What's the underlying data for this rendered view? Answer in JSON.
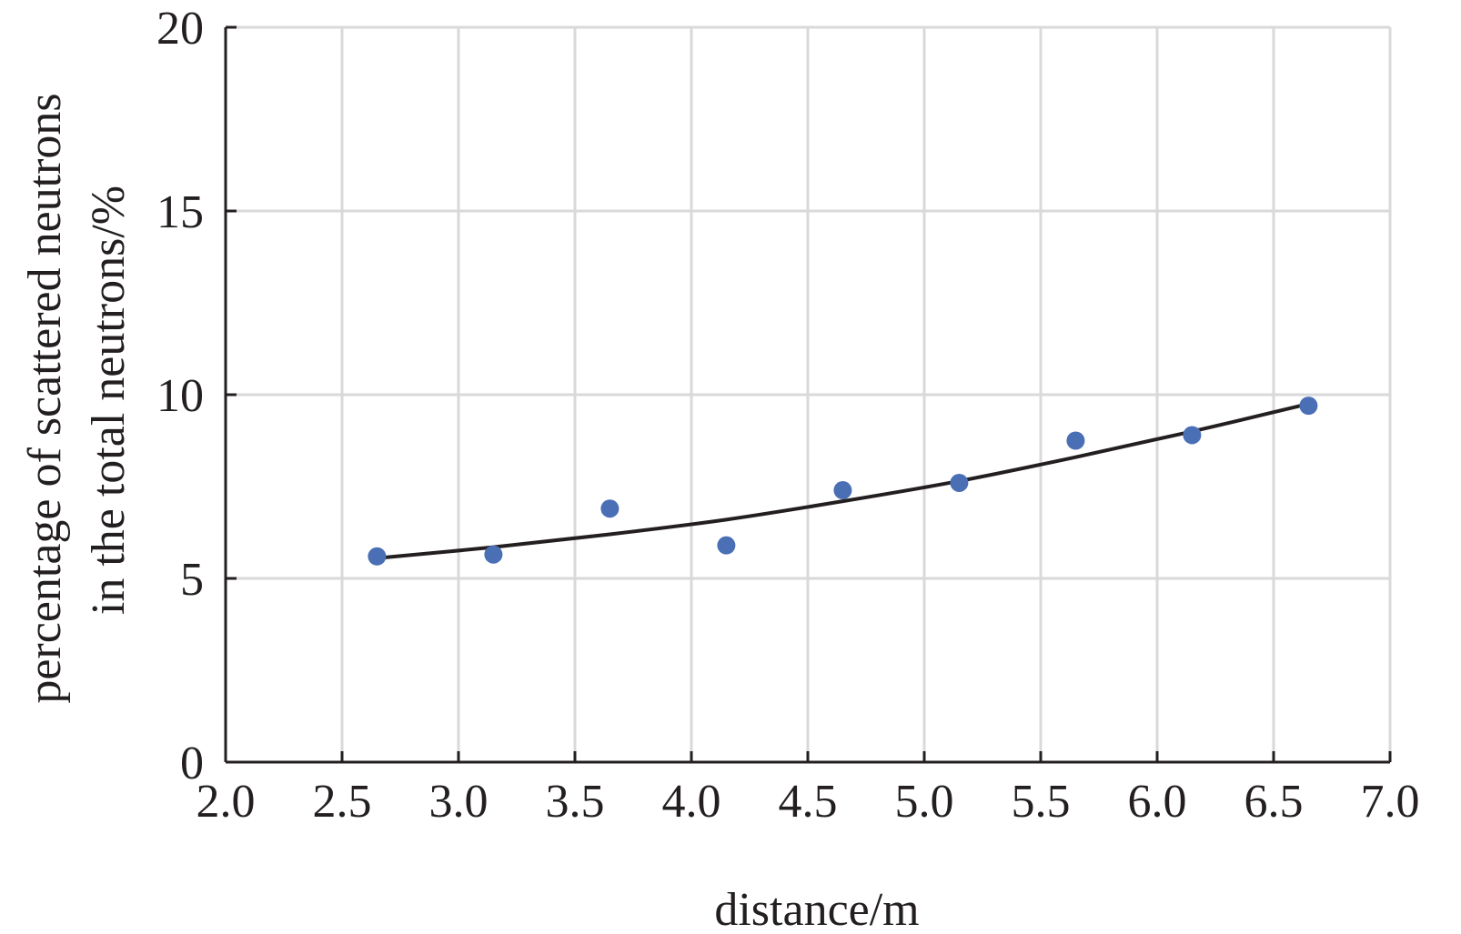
{
  "chart_data": {
    "type": "scatter",
    "title": "",
    "xlabel": "distance/m",
    "ylabel_lines": [
      "percentage of scattered neutrons",
      "in the total neutrons/%"
    ],
    "xlim": [
      2.0,
      7.0
    ],
    "ylim": [
      0,
      20
    ],
    "x_ticks": [
      "2.0",
      "2.5",
      "3.0",
      "3.5",
      "4.0",
      "4.5",
      "5.0",
      "5.5",
      "6.0",
      "6.5",
      "7.0"
    ],
    "y_ticks": [
      "0",
      "5",
      "10",
      "15",
      "20"
    ],
    "grid": true,
    "legend": "none",
    "series": [
      {
        "type": "scatter",
        "color": "#4a6fb5",
        "x": [
          2.65,
          3.15,
          3.65,
          4.15,
          4.65,
          5.15,
          5.65,
          6.15,
          6.65
        ],
        "y": [
          5.6,
          5.65,
          6.9,
          5.9,
          7.4,
          7.6,
          8.75,
          8.9,
          9.7
        ]
      },
      {
        "type": "line",
        "color": "#231f20",
        "x": [
          2.65,
          3.15,
          3.65,
          4.15,
          4.65,
          5.15,
          5.65,
          6.15,
          6.65
        ],
        "y": [
          5.55,
          5.85,
          6.2,
          6.6,
          7.1,
          7.65,
          8.3,
          9.0,
          9.75
        ]
      }
    ]
  }
}
